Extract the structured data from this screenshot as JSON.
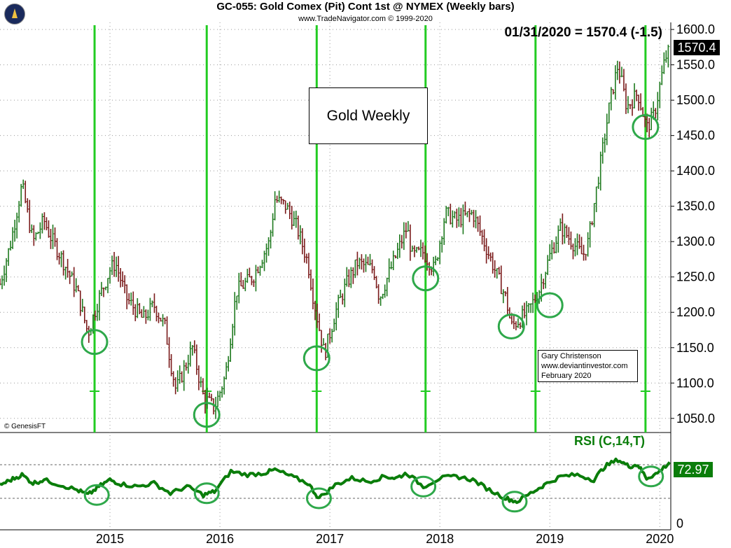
{
  "header": {
    "title": "GC-055:  Gold Comex (Pit) Cont 1st @ NYMEX  (Weekly bars)",
    "subtitle": "www.TradeNavigator.com © 1999-2020",
    "last_price_text": "01/31/2020 = 1570.4 (-1.5)",
    "price_tag": "1570.4",
    "copyright": "© GenesisFT"
  },
  "annotations": {
    "label_box": "Gold Weekly",
    "credit_lines": [
      "Gary Christenson",
      "www.deviantinvestor.com",
      "February 2020"
    ]
  },
  "rsi": {
    "title": "RSI (C,14,T)",
    "value_tag": "72.97"
  },
  "colors": {
    "up_bar": "#1f7a1f",
    "down_bar": "#7a1a1a",
    "cycle_line": "#22cc22",
    "circle": "#2ea84a",
    "rsi_line": "#0a7d0a"
  },
  "chart_data": [
    {
      "type": "ohlc",
      "title": "GC-055:  Gold Comex (Pit) Cont 1st @ NYMEX  (Weekly bars)",
      "ylim": [
        1030,
        1610
      ],
      "yticks": [
        "1600.0",
        "1550.0",
        "1500.0",
        "1450.0",
        "1400.0",
        "1350.0",
        "1300.0",
        "1250.0",
        "1200.0",
        "1150.0",
        "1100.0",
        "1050.0"
      ],
      "xticks": [
        "2015",
        "2016",
        "2017",
        "2018",
        "2019",
        "2020"
      ],
      "xrange": [
        2014.0,
        2020.1
      ],
      "grid": true,
      "approx_close_path": [
        [
          2014.0,
          1240
        ],
        [
          2014.1,
          1300
        ],
        [
          2014.2,
          1380
        ],
        [
          2014.3,
          1300
        ],
        [
          2014.4,
          1330
        ],
        [
          2014.45,
          1310
        ],
        [
          2014.55,
          1280
        ],
        [
          2014.7,
          1230
        ],
        [
          2014.8,
          1170
        ],
        [
          2014.9,
          1220
        ],
        [
          2015.0,
          1260
        ],
        [
          2015.05,
          1270
        ],
        [
          2015.15,
          1220
        ],
        [
          2015.3,
          1190
        ],
        [
          2015.4,
          1210
        ],
        [
          2015.5,
          1180
        ],
        [
          2015.55,
          1130
        ],
        [
          2015.6,
          1090
        ],
        [
          2015.75,
          1150
        ],
        [
          2015.85,
          1080
        ],
        [
          2015.95,
          1065
        ],
        [
          2016.05,
          1110
        ],
        [
          2016.15,
          1230
        ],
        [
          2016.3,
          1250
        ],
        [
          2016.45,
          1300
        ],
        [
          2016.5,
          1360
        ],
        [
          2016.6,
          1350
        ],
        [
          2016.7,
          1320
        ],
        [
          2016.8,
          1270
        ],
        [
          2016.85,
          1220
        ],
        [
          2016.95,
          1140
        ],
        [
          2017.05,
          1200
        ],
        [
          2017.15,
          1240
        ],
        [
          2017.25,
          1270
        ],
        [
          2017.4,
          1260
        ],
        [
          2017.45,
          1220
        ],
        [
          2017.55,
          1260
        ],
        [
          2017.7,
          1320
        ],
        [
          2017.75,
          1280
        ],
        [
          2017.85,
          1285
        ],
        [
          2017.95,
          1260
        ],
        [
          2018.05,
          1340
        ],
        [
          2018.15,
          1330
        ],
        [
          2018.3,
          1340
        ],
        [
          2018.4,
          1300
        ],
        [
          2018.5,
          1260
        ],
        [
          2018.6,
          1220
        ],
        [
          2018.65,
          1180
        ],
        [
          2018.8,
          1200
        ],
        [
          2018.9,
          1230
        ],
        [
          2019.0,
          1280
        ],
        [
          2019.1,
          1320
        ],
        [
          2019.2,
          1300
        ],
        [
          2019.3,
          1280
        ],
        [
          2019.35,
          1300
        ],
        [
          2019.45,
          1400
        ],
        [
          2019.55,
          1500
        ],
        [
          2019.62,
          1550
        ],
        [
          2019.7,
          1490
        ],
        [
          2019.8,
          1510
        ],
        [
          2019.88,
          1460
        ],
        [
          2019.95,
          1480
        ],
        [
          2020.05,
          1560
        ],
        [
          2020.09,
          1570
        ]
      ],
      "cycle_lows_x": [
        2014.86,
        2015.88,
        2016.88,
        2017.87,
        2018.87,
        2019.87
      ],
      "circled_lows": [
        [
          2014.86,
          1158
        ],
        [
          2015.88,
          1055
        ],
        [
          2016.88,
          1135
        ],
        [
          2017.87,
          1248
        ],
        [
          2018.65,
          1180
        ],
        [
          2019.0,
          1210
        ],
        [
          2019.87,
          1462
        ]
      ]
    },
    {
      "type": "line",
      "title": "RSI (C,14,T)",
      "ylim": [
        0,
        100
      ],
      "yticks": [
        "0"
      ],
      "reference_lines": [
        70,
        30
      ],
      "xrange": [
        2014.0,
        2020.1
      ],
      "series": [
        {
          "values": [
            [
              2014.0,
              46
            ],
            [
              2014.1,
              52
            ],
            [
              2014.2,
              58
            ],
            [
              2014.3,
              48
            ],
            [
              2014.4,
              52
            ],
            [
              2014.55,
              46
            ],
            [
              2014.7,
              40
            ],
            [
              2014.8,
              34
            ],
            [
              2014.9,
              44
            ],
            [
              2015.0,
              52
            ],
            [
              2015.1,
              47
            ],
            [
              2015.25,
              44
            ],
            [
              2015.4,
              48
            ],
            [
              2015.55,
              36
            ],
            [
              2015.7,
              44
            ],
            [
              2015.85,
              34
            ],
            [
              2015.95,
              38
            ],
            [
              2016.1,
              62
            ],
            [
              2016.25,
              58
            ],
            [
              2016.4,
              60
            ],
            [
              2016.5,
              64
            ],
            [
              2016.65,
              56
            ],
            [
              2016.8,
              48
            ],
            [
              2016.9,
              30
            ],
            [
              2017.05,
              46
            ],
            [
              2017.2,
              54
            ],
            [
              2017.35,
              50
            ],
            [
              2017.5,
              56
            ],
            [
              2017.6,
              54
            ],
            [
              2017.7,
              60
            ],
            [
              2017.85,
              44
            ],
            [
              2018.0,
              54
            ],
            [
              2018.15,
              56
            ],
            [
              2018.3,
              52
            ],
            [
              2018.45,
              40
            ],
            [
              2018.6,
              30
            ],
            [
              2018.7,
              26
            ],
            [
              2018.85,
              38
            ],
            [
              2018.95,
              46
            ],
            [
              2019.1,
              56
            ],
            [
              2019.25,
              58
            ],
            [
              2019.4,
              52
            ],
            [
              2019.5,
              68
            ],
            [
              2019.62,
              76
            ],
            [
              2019.72,
              68
            ],
            [
              2019.8,
              70
            ],
            [
              2019.88,
              54
            ],
            [
              2019.98,
              60
            ],
            [
              2020.09,
              73
            ]
          ]
        }
      ],
      "circled_lows": [
        [
          2014.88,
          34
        ],
        [
          2015.88,
          36
        ],
        [
          2016.9,
          30
        ],
        [
          2017.85,
          44
        ],
        [
          2018.68,
          26
        ],
        [
          2019.92,
          56
        ]
      ]
    }
  ]
}
